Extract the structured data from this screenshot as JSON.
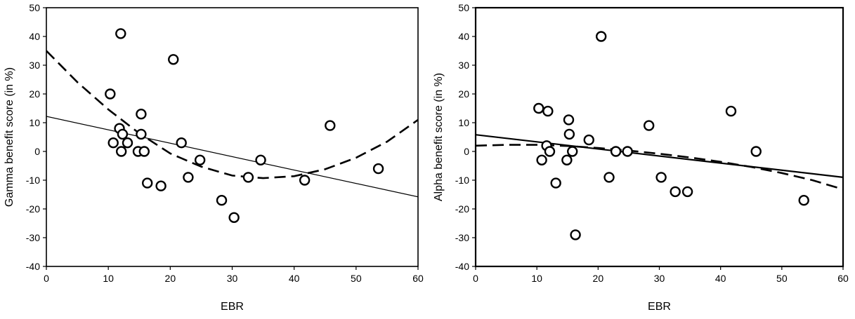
{
  "chart_data": [
    {
      "type": "scatter",
      "xlabel": "EBR",
      "ylabel": "Gamma benefit score (in %)",
      "xlim": [
        0,
        60
      ],
      "ylim": [
        -40,
        50
      ],
      "x_ticks": [
        0,
        10,
        20,
        30,
        40,
        50,
        60
      ],
      "y_ticks": [
        -40,
        -30,
        -20,
        -10,
        0,
        10,
        20,
        30,
        40,
        50
      ],
      "grid": false,
      "colors": {
        "points": "#000000",
        "fill": "#ffffff",
        "lines": "#000000"
      },
      "points": [
        {
          "x": 10.3,
          "y": 20
        },
        {
          "x": 10.8,
          "y": 3
        },
        {
          "x": 11.8,
          "y": 8
        },
        {
          "x": 12.0,
          "y": 41
        },
        {
          "x": 12.1,
          "y": 0
        },
        {
          "x": 12.3,
          "y": 6
        },
        {
          "x": 13.1,
          "y": 3
        },
        {
          "x": 14.8,
          "y": 0
        },
        {
          "x": 15.3,
          "y": 13
        },
        {
          "x": 15.3,
          "y": 6
        },
        {
          "x": 15.8,
          "y": 0
        },
        {
          "x": 16.3,
          "y": -11
        },
        {
          "x": 18.5,
          "y": -12
        },
        {
          "x": 20.5,
          "y": 32
        },
        {
          "x": 21.8,
          "y": 3
        },
        {
          "x": 22.9,
          "y": -9
        },
        {
          "x": 24.8,
          "y": -3
        },
        {
          "x": 28.3,
          "y": -17
        },
        {
          "x": 30.3,
          "y": -23
        },
        {
          "x": 32.6,
          "y": -9
        },
        {
          "x": 34.6,
          "y": -3
        },
        {
          "x": 41.7,
          "y": -10
        },
        {
          "x": 45.8,
          "y": 9
        },
        {
          "x": 53.6,
          "y": -6
        }
      ],
      "fit_lines": [
        {
          "style": "solid",
          "width": 1.2,
          "x": [
            0,
            60
          ],
          "y": [
            12.2,
            -15.8
          ]
        },
        {
          "style": "dashed",
          "width": 2.6,
          "x": [
            0,
            5,
            10,
            15,
            20,
            25,
            30,
            35,
            40,
            45,
            50,
            55,
            60
          ],
          "y": [
            35,
            24.1,
            14.6,
            6.3,
            -0.7,
            -5.3,
            -8.4,
            -9.3,
            -8.6,
            -6.2,
            -2.2,
            3.4,
            11
          ]
        }
      ]
    },
    {
      "type": "scatter",
      "xlabel": "EBR",
      "ylabel": "Alpha benefit score (in %)",
      "xlim": [
        0,
        60
      ],
      "ylim": [
        -40,
        50
      ],
      "x_ticks": [
        0,
        10,
        20,
        30,
        40,
        50,
        60
      ],
      "y_ticks": [
        -40,
        -30,
        -20,
        -10,
        0,
        10,
        20,
        30,
        40,
        50
      ],
      "grid": false,
      "colors": {
        "points": "#000000",
        "fill": "#ffffff",
        "lines": "#000000"
      },
      "points": [
        {
          "x": 10.3,
          "y": 15
        },
        {
          "x": 10.8,
          "y": -3
        },
        {
          "x": 11.8,
          "y": 14
        },
        {
          "x": 11.6,
          "y": 2
        },
        {
          "x": 12.1,
          "y": 0
        },
        {
          "x": 13.1,
          "y": -11
        },
        {
          "x": 14.9,
          "y": -3
        },
        {
          "x": 15.2,
          "y": 11
        },
        {
          "x": 15.3,
          "y": 6
        },
        {
          "x": 15.8,
          "y": 0
        },
        {
          "x": 16.3,
          "y": -29
        },
        {
          "x": 18.5,
          "y": 4
        },
        {
          "x": 20.5,
          "y": 40
        },
        {
          "x": 21.8,
          "y": -9
        },
        {
          "x": 22.9,
          "y": 0
        },
        {
          "x": 24.8,
          "y": 0
        },
        {
          "x": 28.3,
          "y": 9
        },
        {
          "x": 30.3,
          "y": -9
        },
        {
          "x": 32.6,
          "y": -14
        },
        {
          "x": 34.6,
          "y": -14
        },
        {
          "x": 41.7,
          "y": 14
        },
        {
          "x": 45.8,
          "y": 0
        },
        {
          "x": 53.6,
          "y": -17
        }
      ],
      "fit_lines": [
        {
          "style": "solid",
          "width": 2.2,
          "x": [
            0,
            60
          ],
          "y": [
            5.8,
            -9
          ]
        },
        {
          "style": "dashed",
          "width": 2.6,
          "x": [
            0,
            5,
            10,
            15,
            20,
            25,
            30,
            35,
            40,
            45,
            50,
            55,
            60
          ],
          "y": [
            2,
            2.3,
            2.3,
            1.9,
            1.2,
            0.3,
            -0.8,
            -2.1,
            -3.6,
            -5.4,
            -7.5,
            -10,
            -13.2
          ]
        }
      ]
    }
  ]
}
